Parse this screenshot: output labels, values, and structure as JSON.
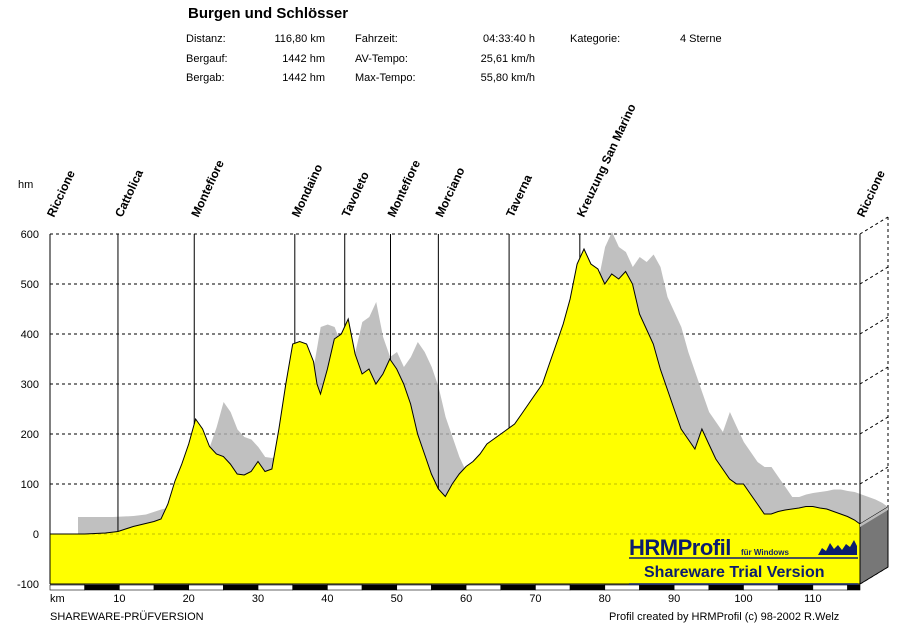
{
  "header": {
    "title": "Burgen und Schlösser",
    "stats": [
      {
        "label": "Distanz:",
        "value": "116,80 km"
      },
      {
        "label": "Bergauf:",
        "value": "1442 hm"
      },
      {
        "label": "Bergab:",
        "value": "1442 hm"
      },
      {
        "label": "Fahrzeit:",
        "value": "04:33:40 h"
      },
      {
        "label": "AV-Tempo:",
        "value": "25,61 km/h"
      },
      {
        "label": "Max-Tempo:",
        "value": "55,80 km/h"
      },
      {
        "label": "Kategorie:",
        "value": "4 Sterne"
      }
    ]
  },
  "footer": {
    "left": "SHAREWARE-PRÜFVERSION",
    "right": "Profil created by HRMProfil (c) 98-2002 R.Welz"
  },
  "watermark": {
    "brand": "HRMProfil",
    "brand_sub": "für Windows",
    "trial": "Shareware Trial  Version"
  },
  "colors": {
    "profile_fill": "#ffff00",
    "shadow_fill": "#c0c0c0",
    "brand": "#0b1d6e"
  },
  "chart_data": {
    "type": "area",
    "ylabel": "hm",
    "xlabel": "km",
    "xlim": [
      0,
      116.8
    ],
    "ylim": [
      -100,
      600
    ],
    "yticks": [
      600,
      500,
      400,
      300,
      200,
      100,
      0,
      -100
    ],
    "xticks": [
      10,
      20,
      30,
      40,
      50,
      60,
      70,
      80,
      90,
      100,
      110
    ],
    "grid": true,
    "waypoints": [
      {
        "name": "Riccione",
        "km": 0
      },
      {
        "name": "Cattolica",
        "km": 9.8
      },
      {
        "name": "Montefiore",
        "km": 20.8
      },
      {
        "name": "Mondaino",
        "km": 35.3
      },
      {
        "name": "Tavoleto",
        "km": 42.5
      },
      {
        "name": "Montefiore",
        "km": 49.1
      },
      {
        "name": "Morciano",
        "km": 56.0
      },
      {
        "name": "Taverna",
        "km": 66.2
      },
      {
        "name": "Kreuzung San Marino",
        "km": 76.4
      },
      {
        "name": "Riccione",
        "km": 116.8
      }
    ],
    "series": [
      {
        "x": [
          0,
          5,
          8,
          9.8,
          12,
          15,
          16,
          17,
          18,
          19,
          20,
          21,
          22,
          23,
          24,
          25,
          26,
          27,
          28,
          29,
          30,
          31,
          32,
          33,
          34,
          35,
          36,
          37,
          38,
          38.5,
          39,
          40,
          41,
          42,
          43,
          44,
          45,
          46,
          47,
          48,
          49,
          50,
          51,
          52,
          53,
          54,
          55,
          56,
          57,
          58,
          59,
          60,
          61,
          62,
          63,
          64,
          65,
          66,
          67,
          68,
          69,
          70,
          71,
          72,
          73,
          74,
          75,
          76,
          77,
          78,
          79,
          80,
          81,
          82,
          83,
          84,
          85,
          86,
          87,
          88,
          89,
          90,
          91,
          92,
          93,
          94,
          95,
          96,
          97,
          98,
          99,
          100,
          101,
          102,
          103,
          104,
          105,
          106,
          107,
          108,
          109,
          110,
          111,
          112,
          113,
          114,
          115,
          116,
          116.8
        ],
        "values": [
          0,
          0,
          2,
          5,
          15,
          25,
          30,
          60,
          105,
          140,
          180,
          230,
          210,
          175,
          160,
          155,
          140,
          120,
          118,
          125,
          145,
          125,
          130,
          210,
          300,
          380,
          385,
          380,
          345,
          300,
          280,
          330,
          390,
          400,
          430,
          360,
          320,
          330,
          300,
          320,
          350,
          330,
          300,
          260,
          200,
          160,
          120,
          90,
          75,
          100,
          120,
          135,
          145,
          160,
          180,
          190,
          200,
          210,
          220,
          240,
          260,
          280,
          300,
          340,
          380,
          420,
          470,
          540,
          570,
          540,
          530,
          500,
          520,
          510,
          525,
          500,
          440,
          410,
          380,
          330,
          290,
          250,
          210,
          190,
          170,
          210,
          180,
          150,
          130,
          110,
          100,
          100,
          80,
          60,
          40,
          40,
          45,
          48,
          50,
          52,
          55,
          55,
          52,
          50,
          45,
          40,
          35,
          28,
          20
        ]
      }
    ]
  }
}
